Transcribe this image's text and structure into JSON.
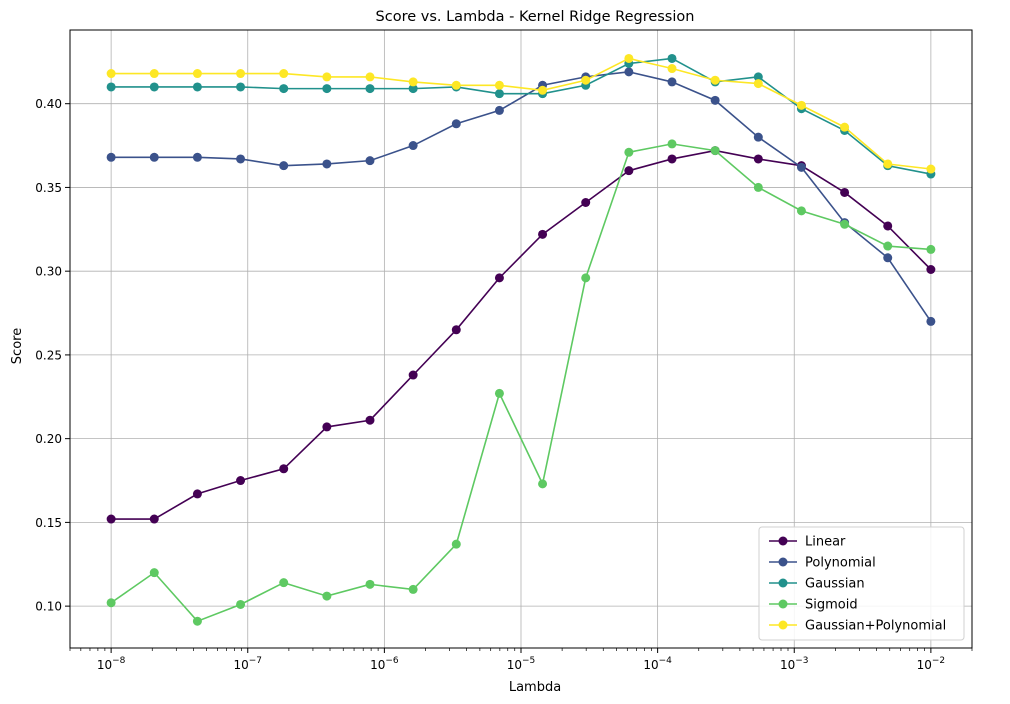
{
  "chart_data": {
    "type": "line",
    "title": "Score vs. Lambda - Kernel Ridge Regression",
    "xlabel": "Lambda",
    "ylabel": "Score",
    "xscale": "log",
    "xlim": [
      5e-09,
      0.02
    ],
    "ylim": [
      0.075,
      0.444
    ],
    "grid": true,
    "legend_position": "bottom-right",
    "x_ticks": [
      {
        "value": 1e-08,
        "base": "10",
        "exp": "−8"
      },
      {
        "value": 1e-07,
        "base": "10",
        "exp": "−7"
      },
      {
        "value": 1e-06,
        "base": "10",
        "exp": "−6"
      },
      {
        "value": 1e-05,
        "base": "10",
        "exp": "−5"
      },
      {
        "value": 0.0001,
        "base": "10",
        "exp": "−4"
      },
      {
        "value": 0.001,
        "base": "10",
        "exp": "−3"
      },
      {
        "value": 0.01,
        "base": "10",
        "exp": "−2"
      }
    ],
    "y_ticks": [
      {
        "value": 0.1,
        "label": "0.10"
      },
      {
        "value": 0.15,
        "label": "0.15"
      },
      {
        "value": 0.2,
        "label": "0.20"
      },
      {
        "value": 0.25,
        "label": "0.25"
      },
      {
        "value": 0.3,
        "label": "0.30"
      },
      {
        "value": 0.35,
        "label": "0.35"
      },
      {
        "value": 0.4,
        "label": "0.40"
      }
    ],
    "x": [
      1e-08,
      2.069e-08,
      4.281e-08,
      8.859e-08,
      1.833e-07,
      3.793e-07,
      7.848e-07,
      1.624e-06,
      3.36e-06,
      6.952e-06,
      1.438e-05,
      2.976e-05,
      6.158e-05,
      0.0001274,
      0.0002637,
      0.0005456,
      0.001129,
      0.002336,
      0.004833,
      0.01
    ],
    "series": [
      {
        "name": "Linear",
        "color": "#440154",
        "values": [
          0.152,
          0.152,
          0.167,
          0.175,
          0.182,
          0.207,
          0.211,
          0.238,
          0.265,
          0.296,
          0.322,
          0.341,
          0.36,
          0.367,
          0.372,
          0.367,
          0.363,
          0.347,
          0.327,
          0.301
        ]
      },
      {
        "name": "Polynomial",
        "color": "#3b528b",
        "values": [
          0.368,
          0.368,
          0.368,
          0.367,
          0.363,
          0.364,
          0.366,
          0.375,
          0.388,
          0.396,
          0.411,
          0.416,
          0.419,
          0.413,
          0.402,
          0.38,
          0.362,
          0.329,
          0.308,
          0.27
        ]
      },
      {
        "name": "Gaussian",
        "color": "#21918c",
        "values": [
          0.41,
          0.41,
          0.41,
          0.41,
          0.409,
          0.409,
          0.409,
          0.409,
          0.41,
          0.406,
          0.406,
          0.411,
          0.424,
          0.427,
          0.413,
          0.416,
          0.397,
          0.384,
          0.363,
          0.358
        ]
      },
      {
        "name": "Sigmoid",
        "color": "#5ec962",
        "values": [
          0.102,
          0.12,
          0.091,
          0.101,
          0.114,
          0.106,
          0.113,
          0.11,
          0.137,
          0.227,
          0.173,
          0.296,
          0.371,
          0.376,
          0.372,
          0.35,
          0.336,
          0.328,
          0.315,
          0.313
        ]
      },
      {
        "name": "Gaussian+Polynomial",
        "color": "#fde725",
        "values": [
          0.418,
          0.418,
          0.418,
          0.418,
          0.418,
          0.416,
          0.416,
          0.413,
          0.411,
          0.411,
          0.408,
          0.414,
          0.427,
          0.421,
          0.414,
          0.412,
          0.399,
          0.386,
          0.364,
          0.361
        ]
      }
    ]
  }
}
